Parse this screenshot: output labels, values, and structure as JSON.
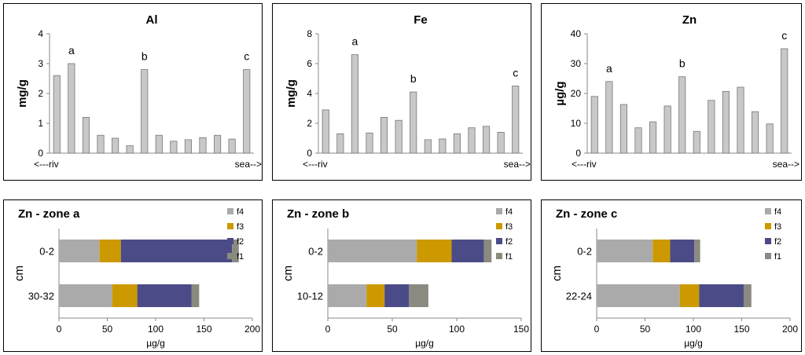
{
  "chart_data": [
    {
      "type": "bar",
      "title": "Al",
      "ylabel": "mg/g",
      "ylim": [
        0,
        4
      ],
      "yticks": [
        "0",
        "1",
        "2",
        "3",
        "4"
      ],
      "values": [
        2.6,
        3.0,
        1.2,
        0.6,
        0.5,
        0.25,
        2.8,
        0.6,
        0.4,
        0.45,
        0.52,
        0.6,
        0.47,
        2.8
      ],
      "point_labels": [
        {
          "index": 1,
          "text": "a"
        },
        {
          "index": 6,
          "text": "b"
        },
        {
          "index": 13,
          "text": "c"
        }
      ],
      "x_left_label": "<---riv",
      "x_right_label": "sea-->",
      "bar_color": "#c8c8c8"
    },
    {
      "type": "bar",
      "title": "Fe",
      "ylabel": "mg/g",
      "ylim": [
        0,
        8
      ],
      "yticks": [
        "0",
        "2",
        "4",
        "6",
        "8"
      ],
      "values": [
        2.9,
        1.3,
        6.6,
        1.35,
        2.4,
        2.2,
        4.1,
        0.9,
        0.95,
        1.3,
        1.7,
        1.8,
        1.4,
        4.5
      ],
      "point_labels": [
        {
          "index": 2,
          "text": "a"
        },
        {
          "index": 6,
          "text": "b"
        },
        {
          "index": 13,
          "text": "c"
        }
      ],
      "x_left_label": "<---riv",
      "x_right_label": "sea-->",
      "bar_color": "#c8c8c8"
    },
    {
      "type": "bar",
      "title": "Zn",
      "ylabel": "µg/g",
      "ylim": [
        0,
        40
      ],
      "yticks": [
        "0",
        "10",
        "20",
        "30",
        "40"
      ],
      "values": [
        19,
        24,
        16.3,
        8.5,
        10.5,
        15.8,
        25.6,
        7.3,
        17.7,
        20.7,
        22.1,
        13.9,
        9.8,
        35
      ],
      "point_labels": [
        {
          "index": 1,
          "text": "a"
        },
        {
          "index": 6,
          "text": "b"
        },
        {
          "index": 13,
          "text": "c"
        }
      ],
      "x_left_label": "<---riv",
      "x_right_label": "sea-->",
      "bar_color": "#c8c8c8"
    },
    {
      "type": "bar",
      "orientation": "horizontal",
      "stacked": true,
      "title": "Zn - zone a",
      "xlabel": "µg/g",
      "ylabel": "cm",
      "xlim": [
        0,
        200
      ],
      "xticks": [
        "0",
        "50",
        "100",
        "150",
        "200"
      ],
      "categories": [
        "0-2",
        "30-32"
      ],
      "series": [
        {
          "name": "f4",
          "color": "#aaaaaa",
          "values": [
            42,
            55
          ]
        },
        {
          "name": "f3",
          "color": "#cc9900",
          "values": [
            22,
            26
          ]
        },
        {
          "name": "f2",
          "color": "#4b4b87",
          "values": [
            115,
            56
          ]
        },
        {
          "name": "f1",
          "color": "#8a8a80",
          "values": [
            7,
            8
          ]
        }
      ],
      "legend_order": [
        "f4",
        "f3",
        "f2",
        "f1"
      ],
      "legend": "right"
    },
    {
      "type": "bar",
      "orientation": "horizontal",
      "stacked": true,
      "title": "Zn - zone b",
      "xlabel": "µg/g",
      "ylabel": "cm",
      "xlim": [
        0,
        150
      ],
      "xticks": [
        "0",
        "50",
        "100",
        "150"
      ],
      "categories": [
        "0-2",
        "10-12"
      ],
      "series": [
        {
          "name": "f4",
          "color": "#aaaaaa",
          "values": [
            69,
            30
          ]
        },
        {
          "name": "f3",
          "color": "#cc9900",
          "values": [
            27,
            14
          ]
        },
        {
          "name": "f2",
          "color": "#4b4b87",
          "values": [
            25,
            19
          ]
        },
        {
          "name": "f1",
          "color": "#8a8a80",
          "values": [
            6,
            15
          ]
        }
      ],
      "legend_order": [
        "f4",
        "f3",
        "f2",
        "f1"
      ],
      "legend": "right"
    },
    {
      "type": "bar",
      "orientation": "horizontal",
      "stacked": true,
      "title": "Zn - zone c",
      "xlabel": "µg/g",
      "ylabel": "cm",
      "xlim": [
        0,
        200
      ],
      "xticks": [
        "0",
        "50",
        "100",
        "150",
        "200"
      ],
      "categories": [
        "0-2",
        "22-24"
      ],
      "series": [
        {
          "name": "f4",
          "color": "#aaaaaa",
          "values": [
            58,
            86
          ]
        },
        {
          "name": "f3",
          "color": "#cc9900",
          "values": [
            18,
            20
          ]
        },
        {
          "name": "f2",
          "color": "#4b4b87",
          "values": [
            25,
            46
          ]
        },
        {
          "name": "f1",
          "color": "#8a8a80",
          "values": [
            6,
            8
          ]
        }
      ],
      "legend_order": [
        "f4",
        "f3",
        "f2",
        "f1"
      ],
      "legend": "right"
    }
  ]
}
